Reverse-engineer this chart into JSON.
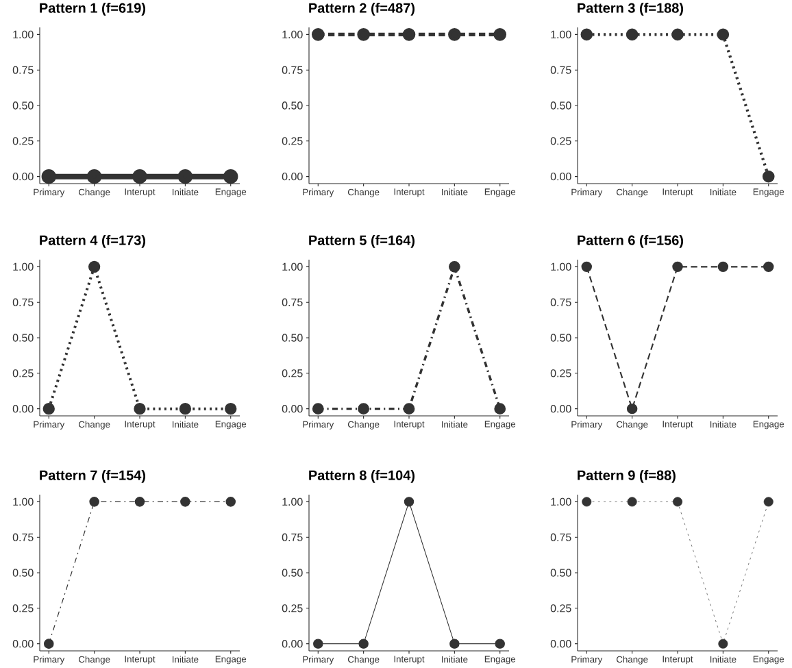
{
  "chart_data": [
    {
      "type": "line",
      "title": "Pattern 1 (f=619)",
      "categories": [
        "Primary",
        "Change",
        "Interupt",
        "Initiate",
        "Engage"
      ],
      "values": [
        0,
        0,
        0,
        0,
        0
      ],
      "color": "#333333",
      "marker": "circle",
      "line_style": "solid",
      "ylim": [
        -0.05,
        1.05
      ],
      "yticks": [
        {
          "value": 0,
          "label": "0.00"
        },
        {
          "value": 0.25,
          "label": "0.25"
        },
        {
          "value": 0.5,
          "label": "0.50"
        },
        {
          "value": 0.75,
          "label": "0.75"
        },
        {
          "value": 1,
          "label": "1.00"
        }
      ]
    },
    {
      "type": "line",
      "title": "Pattern 2 (f=487)",
      "categories": [
        "Primary",
        "Change",
        "Interupt",
        "Initiate",
        "Engage"
      ],
      "values": [
        1,
        1,
        1,
        1,
        1
      ],
      "color": "#333333",
      "marker": "circle",
      "line_style": "dashed",
      "ylim": [
        -0.05,
        1.05
      ],
      "yticks": [
        {
          "value": 0,
          "label": "0.00"
        },
        {
          "value": 0.25,
          "label": "0.25"
        },
        {
          "value": 0.5,
          "label": "0.50"
        },
        {
          "value": 0.75,
          "label": "0.75"
        },
        {
          "value": 1,
          "label": "1.00"
        }
      ]
    },
    {
      "type": "line",
      "title": "Pattern 3 (f=188)",
      "categories": [
        "Primary",
        "Change",
        "Interupt",
        "Initiate",
        "Engage"
      ],
      "values": [
        1,
        1,
        1,
        1,
        0
      ],
      "color": "#333333",
      "marker": "circle",
      "line_style": "dotted",
      "ylim": [
        -0.05,
        1.05
      ],
      "yticks": [
        {
          "value": 0,
          "label": "0.00"
        },
        {
          "value": 0.25,
          "label": "0.25"
        },
        {
          "value": 0.5,
          "label": "0.50"
        },
        {
          "value": 0.75,
          "label": "0.75"
        },
        {
          "value": 1,
          "label": "1.00"
        }
      ]
    },
    {
      "type": "line",
      "title": "Pattern 4 (f=173)",
      "categories": [
        "Primary",
        "Change",
        "Interupt",
        "Initiate",
        "Engage"
      ],
      "values": [
        0,
        1,
        0,
        0,
        0
      ],
      "color": "#333333",
      "marker": "circle",
      "line_style": "dotted",
      "ylim": [
        -0.05,
        1.05
      ],
      "yticks": [
        {
          "value": 0,
          "label": "0.00"
        },
        {
          "value": 0.25,
          "label": "0.25"
        },
        {
          "value": 0.5,
          "label": "0.50"
        },
        {
          "value": 0.75,
          "label": "0.75"
        },
        {
          "value": 1,
          "label": "1.00"
        }
      ]
    },
    {
      "type": "line",
      "title": "Pattern 5 (f=164)",
      "categories": [
        "Primary",
        "Change",
        "Interupt",
        "Initiate",
        "Engage"
      ],
      "values": [
        0,
        0,
        0,
        1,
        0
      ],
      "color": "#333333",
      "marker": "circle",
      "line_style": "dashdot",
      "ylim": [
        -0.05,
        1.05
      ],
      "yticks": [
        {
          "value": 0,
          "label": "0.00"
        },
        {
          "value": 0.25,
          "label": "0.25"
        },
        {
          "value": 0.5,
          "label": "0.50"
        },
        {
          "value": 0.75,
          "label": "0.75"
        },
        {
          "value": 1,
          "label": "1.00"
        }
      ]
    },
    {
      "type": "line",
      "title": "Pattern 6 (f=156)",
      "categories": [
        "Primary",
        "Change",
        "Interupt",
        "Initiate",
        "Engage"
      ],
      "values": [
        1,
        0,
        1,
        1,
        1
      ],
      "color": "#333333",
      "marker": "circle",
      "line_style": "dashed",
      "ylim": [
        -0.05,
        1.05
      ],
      "yticks": [
        {
          "value": 0,
          "label": "0.00"
        },
        {
          "value": 0.25,
          "label": "0.25"
        },
        {
          "value": 0.5,
          "label": "0.50"
        },
        {
          "value": 0.75,
          "label": "0.75"
        },
        {
          "value": 1,
          "label": "1.00"
        }
      ]
    },
    {
      "type": "line",
      "title": "Pattern 7 (f=154)",
      "categories": [
        "Primary",
        "Change",
        "Interupt",
        "Initiate",
        "Engage"
      ],
      "values": [
        0,
        1,
        1,
        1,
        1
      ],
      "color": "#333333",
      "marker": "circle",
      "line_style": "dashdot",
      "ylim": [
        -0.05,
        1.05
      ],
      "yticks": [
        {
          "value": 0,
          "label": "0.00"
        },
        {
          "value": 0.25,
          "label": "0.25"
        },
        {
          "value": 0.5,
          "label": "0.50"
        },
        {
          "value": 0.75,
          "label": "0.75"
        },
        {
          "value": 1,
          "label": "1.00"
        }
      ]
    },
    {
      "type": "line",
      "title": "Pattern 8 (f=104)",
      "categories": [
        "Primary",
        "Change",
        "Interupt",
        "Initiate",
        "Engage"
      ],
      "values": [
        0,
        0,
        1,
        0,
        0
      ],
      "color": "#333333",
      "marker": "circle",
      "line_style": "solid",
      "ylim": [
        -0.05,
        1.05
      ],
      "yticks": [
        {
          "value": 0,
          "label": "0.00"
        },
        {
          "value": 0.25,
          "label": "0.25"
        },
        {
          "value": 0.5,
          "label": "0.50"
        },
        {
          "value": 0.75,
          "label": "0.75"
        },
        {
          "value": 1,
          "label": "1.00"
        }
      ]
    },
    {
      "type": "line",
      "title": "Pattern 9 (f=88)",
      "categories": [
        "Primary",
        "Change",
        "Interupt",
        "Initiate",
        "Engage"
      ],
      "values": [
        1,
        1,
        1,
        0,
        1
      ],
      "color": "#333333",
      "marker": "circle",
      "line_style": "dotted",
      "ylim": [
        -0.05,
        1.05
      ],
      "yticks": [
        {
          "value": 0,
          "label": "0.00"
        },
        {
          "value": 0.25,
          "label": "0.25"
        },
        {
          "value": 0.5,
          "label": "0.50"
        },
        {
          "value": 0.75,
          "label": "0.75"
        },
        {
          "value": 1,
          "label": "1.00"
        }
      ]
    }
  ]
}
